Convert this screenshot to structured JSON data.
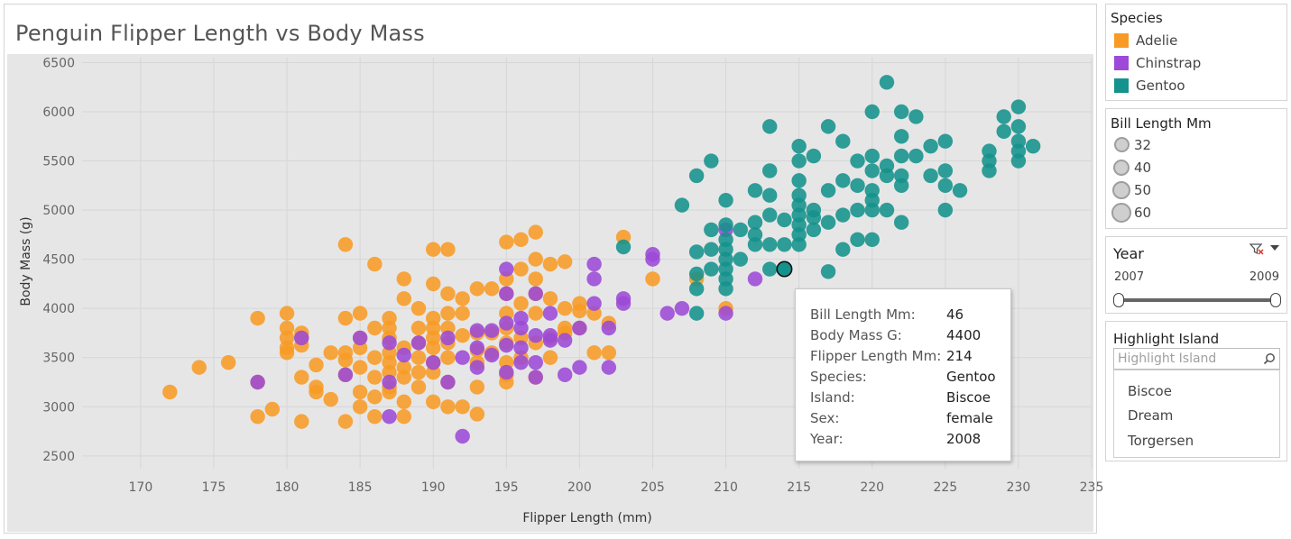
{
  "title": "Penguin Flipper Length vs Body Mass",
  "colors": {
    "Adelie": "#f89b25",
    "Chinstrap": "#9c4ad7",
    "Gentoo": "#15928c"
  },
  "chart_data": {
    "type": "scatter",
    "xlabel": "Flipper Length (mm)",
    "ylabel": "Body Mass (g)",
    "xlim": [
      166,
      235
    ],
    "ylim": [
      2370,
      6550
    ],
    "x_ticks": [
      170,
      175,
      180,
      185,
      190,
      195,
      200,
      205,
      210,
      215,
      220,
      225,
      230,
      235
    ],
    "y_ticks": [
      2500,
      3000,
      3500,
      4000,
      4500,
      5000,
      5500,
      6000,
      6500
    ],
    "grid": true,
    "series": [
      {
        "name": "Adelie",
        "color": "#f89b25",
        "points": [
          [
            172,
            3150
          ],
          [
            174,
            3400
          ],
          [
            176,
            3450
          ],
          [
            178,
            2900
          ],
          [
            178,
            3250
          ],
          [
            178,
            3900
          ],
          [
            179,
            2975
          ],
          [
            180,
            3550
          ],
          [
            180,
            3600
          ],
          [
            180,
            3700
          ],
          [
            180,
            3800
          ],
          [
            180,
            3950
          ],
          [
            181,
            2850
          ],
          [
            181,
            3300
          ],
          [
            181,
            3625
          ],
          [
            181,
            3700
          ],
          [
            181,
            3750
          ],
          [
            182,
            3150
          ],
          [
            182,
            3200
          ],
          [
            182,
            3425
          ],
          [
            183,
            3075
          ],
          [
            183,
            3550
          ],
          [
            184,
            2850
          ],
          [
            184,
            3325
          ],
          [
            184,
            3475
          ],
          [
            184,
            3550
          ],
          [
            184,
            3900
          ],
          [
            184,
            4650
          ],
          [
            185,
            3000
          ],
          [
            185,
            3150
          ],
          [
            185,
            3400
          ],
          [
            185,
            3600
          ],
          [
            185,
            3700
          ],
          [
            185,
            3950
          ],
          [
            186,
            2900
          ],
          [
            186,
            3100
          ],
          [
            186,
            3300
          ],
          [
            186,
            3500
          ],
          [
            186,
            3800
          ],
          [
            186,
            4450
          ],
          [
            187,
            3150
          ],
          [
            187,
            3200
          ],
          [
            187,
            3350
          ],
          [
            187,
            3450
          ],
          [
            187,
            3550
          ],
          [
            187,
            3700
          ],
          [
            187,
            3800
          ],
          [
            187,
            3900
          ],
          [
            188,
            2900
          ],
          [
            188,
            3050
          ],
          [
            188,
            3300
          ],
          [
            188,
            3400
          ],
          [
            188,
            3600
          ],
          [
            188,
            4100
          ],
          [
            188,
            4300
          ],
          [
            189,
            3200
          ],
          [
            189,
            3350
          ],
          [
            189,
            3500
          ],
          [
            189,
            3650
          ],
          [
            189,
            3800
          ],
          [
            189,
            4000
          ],
          [
            190,
            3050
          ],
          [
            190,
            3350
          ],
          [
            190,
            3450
          ],
          [
            190,
            3600
          ],
          [
            190,
            3700
          ],
          [
            190,
            3800
          ],
          [
            190,
            3900
          ],
          [
            190,
            4250
          ],
          [
            190,
            4600
          ],
          [
            191,
            3000
          ],
          [
            191,
            3250
          ],
          [
            191,
            3500
          ],
          [
            191,
            3650
          ],
          [
            191,
            3800
          ],
          [
            191,
            3950
          ],
          [
            191,
            4150
          ],
          [
            191,
            4600
          ],
          [
            192,
            3000
          ],
          [
            192,
            3725
          ],
          [
            192,
            3950
          ],
          [
            192,
            4100
          ],
          [
            193,
            2925
          ],
          [
            193,
            3200
          ],
          [
            193,
            3450
          ],
          [
            193,
            3575
          ],
          [
            193,
            3750
          ],
          [
            193,
            4200
          ],
          [
            194,
            3550
          ],
          [
            194,
            3750
          ],
          [
            194,
            4200
          ],
          [
            195,
            3250
          ],
          [
            195,
            3325
          ],
          [
            195,
            3450
          ],
          [
            195,
            3650
          ],
          [
            195,
            3800
          ],
          [
            195,
            3950
          ],
          [
            195,
            4150
          ],
          [
            195,
            4300
          ],
          [
            195,
            4675
          ],
          [
            196,
            3500
          ],
          [
            196,
            3700
          ],
          [
            196,
            4050
          ],
          [
            196,
            4400
          ],
          [
            196,
            4700
          ],
          [
            197,
            3300
          ],
          [
            197,
            3650
          ],
          [
            197,
            3950
          ],
          [
            197,
            4150
          ],
          [
            197,
            4300
          ],
          [
            197,
            4500
          ],
          [
            197,
            4775
          ],
          [
            198,
            3500
          ],
          [
            198,
            3700
          ],
          [
            198,
            4100
          ],
          [
            198,
            4450
          ],
          [
            199,
            3750
          ],
          [
            199,
            3800
          ],
          [
            199,
            4000
          ],
          [
            199,
            4475
          ],
          [
            200,
            3800
          ],
          [
            200,
            3975
          ],
          [
            200,
            4050
          ],
          [
            201,
            3550
          ],
          [
            201,
            3950
          ],
          [
            202,
            3550
          ],
          [
            202,
            3850
          ],
          [
            203,
            4725
          ],
          [
            205,
            4300
          ],
          [
            208,
            4300
          ],
          [
            210,
            4000
          ]
        ]
      },
      {
        "name": "Chinstrap",
        "color": "#9c4ad7",
        "points": [
          [
            178,
            3250
          ],
          [
            181,
            3700
          ],
          [
            184,
            3325
          ],
          [
            185,
            3700
          ],
          [
            187,
            2900
          ],
          [
            187,
            3250
          ],
          [
            187,
            3650
          ],
          [
            188,
            3525
          ],
          [
            189,
            3650
          ],
          [
            190,
            3450
          ],
          [
            191,
            3250
          ],
          [
            191,
            3700
          ],
          [
            192,
            2700
          ],
          [
            192,
            3500
          ],
          [
            193,
            3400
          ],
          [
            193,
            3600
          ],
          [
            193,
            3775
          ],
          [
            194,
            3525
          ],
          [
            194,
            3775
          ],
          [
            195,
            3350
          ],
          [
            195,
            3625
          ],
          [
            195,
            3850
          ],
          [
            195,
            4150
          ],
          [
            195,
            4400
          ],
          [
            196,
            3450
          ],
          [
            196,
            3600
          ],
          [
            196,
            3800
          ],
          [
            196,
            3900
          ],
          [
            197,
            3300
          ],
          [
            197,
            3450
          ],
          [
            197,
            3725
          ],
          [
            197,
            4150
          ],
          [
            198,
            3675
          ],
          [
            198,
            3725
          ],
          [
            198,
            3950
          ],
          [
            199,
            3325
          ],
          [
            199,
            3675
          ],
          [
            200,
            3400
          ],
          [
            200,
            3800
          ],
          [
            201,
            4050
          ],
          [
            201,
            4300
          ],
          [
            201,
            4450
          ],
          [
            202,
            3400
          ],
          [
            202,
            3800
          ],
          [
            203,
            4050
          ],
          [
            203,
            4100
          ],
          [
            205,
            4500
          ],
          [
            205,
            4550
          ],
          [
            206,
            3950
          ],
          [
            207,
            4000
          ],
          [
            210,
            3950
          ],
          [
            210,
            4800
          ],
          [
            212,
            4300
          ]
        ]
      },
      {
        "name": "Gentoo",
        "color": "#15928c",
        "points": [
          [
            203,
            4625
          ],
          [
            207,
            5050
          ],
          [
            208,
            3950
          ],
          [
            208,
            4200
          ],
          [
            208,
            4350
          ],
          [
            208,
            4575
          ],
          [
            208,
            5350
          ],
          [
            209,
            4400
          ],
          [
            209,
            4600
          ],
          [
            209,
            4800
          ],
          [
            209,
            5500
          ],
          [
            210,
            4200
          ],
          [
            210,
            4300
          ],
          [
            210,
            4400
          ],
          [
            210,
            4500
          ],
          [
            210,
            4600
          ],
          [
            210,
            4700
          ],
          [
            210,
            4850
          ],
          [
            210,
            5100
          ],
          [
            211,
            4500
          ],
          [
            211,
            4800
          ],
          [
            212,
            4650
          ],
          [
            212,
            4750
          ],
          [
            212,
            4875
          ],
          [
            212,
            5200
          ],
          [
            213,
            4400
          ],
          [
            213,
            4650
          ],
          [
            213,
            4950
          ],
          [
            213,
            5150
          ],
          [
            213,
            5400
          ],
          [
            213,
            5850
          ],
          [
            214,
            4650
          ],
          [
            214,
            4900
          ],
          [
            215,
            4650
          ],
          [
            215,
            4750
          ],
          [
            215,
            4850
          ],
          [
            215,
            4950
          ],
          [
            215,
            5050
          ],
          [
            215,
            5150
          ],
          [
            215,
            5300
          ],
          [
            215,
            5500
          ],
          [
            215,
            5650
          ],
          [
            216,
            4800
          ],
          [
            216,
            4925
          ],
          [
            216,
            5000
          ],
          [
            216,
            5550
          ],
          [
            217,
            4375
          ],
          [
            217,
            4875
          ],
          [
            217,
            5200
          ],
          [
            217,
            5850
          ],
          [
            218,
            4600
          ],
          [
            218,
            4950
          ],
          [
            218,
            5300
          ],
          [
            218,
            5700
          ],
          [
            219,
            4700
          ],
          [
            219,
            5000
          ],
          [
            219,
            5250
          ],
          [
            219,
            5500
          ],
          [
            220,
            4700
          ],
          [
            220,
            5000
          ],
          [
            220,
            5100
          ],
          [
            220,
            5200
          ],
          [
            220,
            5400
          ],
          [
            220,
            5550
          ],
          [
            220,
            6000
          ],
          [
            221,
            5000
          ],
          [
            221,
            5350
          ],
          [
            221,
            5450
          ],
          [
            221,
            6300
          ],
          [
            222,
            4875
          ],
          [
            222,
            5250
          ],
          [
            222,
            5350
          ],
          [
            222,
            5550
          ],
          [
            222,
            5750
          ],
          [
            222,
            6000
          ],
          [
            223,
            5550
          ],
          [
            223,
            5950
          ],
          [
            224,
            5350
          ],
          [
            224,
            5650
          ],
          [
            225,
            5000
          ],
          [
            225,
            5250
          ],
          [
            225,
            5400
          ],
          [
            225,
            5700
          ],
          [
            226,
            5200
          ],
          [
            228,
            5400
          ],
          [
            228,
            5500
          ],
          [
            228,
            5600
          ],
          [
            229,
            5800
          ],
          [
            229,
            5950
          ],
          [
            230,
            5500
          ],
          [
            230,
            5600
          ],
          [
            230,
            5700
          ],
          [
            230,
            5850
          ],
          [
            230,
            6050
          ],
          [
            231,
            5650
          ],
          [
            214,
            4400
          ]
        ]
      }
    ],
    "highlight_point": [
      214,
      4400
    ]
  },
  "tooltip": {
    "rows": [
      {
        "label": "Bill Length Mm:",
        "value": "46"
      },
      {
        "label": "Body Mass G:",
        "value": "4400"
      },
      {
        "label": "Flipper Length Mm:",
        "value": "214"
      },
      {
        "label": "Species:",
        "value": "Gentoo"
      },
      {
        "label": "Island:",
        "value": "Biscoe"
      },
      {
        "label": "Sex:",
        "value": "female"
      },
      {
        "label": "Year:",
        "value": "2008"
      }
    ]
  },
  "legend_species": {
    "title": "Species",
    "items": [
      "Adelie",
      "Chinstrap",
      "Gentoo"
    ]
  },
  "legend_size": {
    "title": "Bill Length Mm",
    "items": [
      "32",
      "40",
      "50",
      "60"
    ]
  },
  "year_filter": {
    "title": "Year",
    "min": "2007",
    "max": "2009",
    "icons": [
      "filter-clear-icon",
      "dropdown-caret-icon"
    ]
  },
  "highlight": {
    "title": "Highlight Island",
    "placeholder": "Highlight Island",
    "options": [
      "Biscoe",
      "Dream",
      "Torgersen"
    ],
    "icon": "search-icon"
  }
}
